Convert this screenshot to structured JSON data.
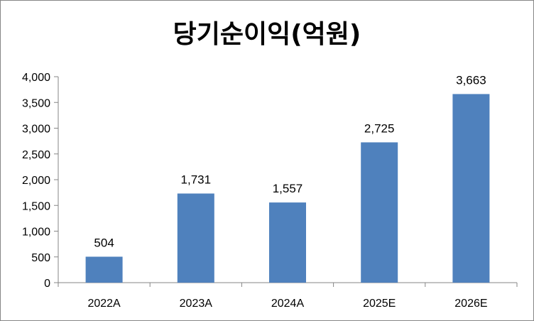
{
  "chart_data": {
    "type": "bar",
    "title": "당기순이익(억원)",
    "categories": [
      "2022A",
      "2023A",
      "2024A",
      "2025E",
      "2026E"
    ],
    "values": [
      504,
      1731,
      1557,
      2725,
      3663
    ],
    "data_labels": [
      "504",
      "1,731",
      "1,557",
      "2,725",
      "3,663"
    ],
    "ylim": [
      0,
      4000
    ],
    "yticks": [
      0,
      500,
      1000,
      1500,
      2000,
      2500,
      3000,
      3500,
      4000
    ],
    "ytick_labels": [
      "0",
      "500",
      "1,000",
      "1,500",
      "2,000",
      "2,500",
      "3,000",
      "3,500",
      "4,000"
    ],
    "xlabel": "",
    "ylabel": "",
    "grid": false,
    "legend": "none",
    "bar_color": "#4F81BD"
  }
}
